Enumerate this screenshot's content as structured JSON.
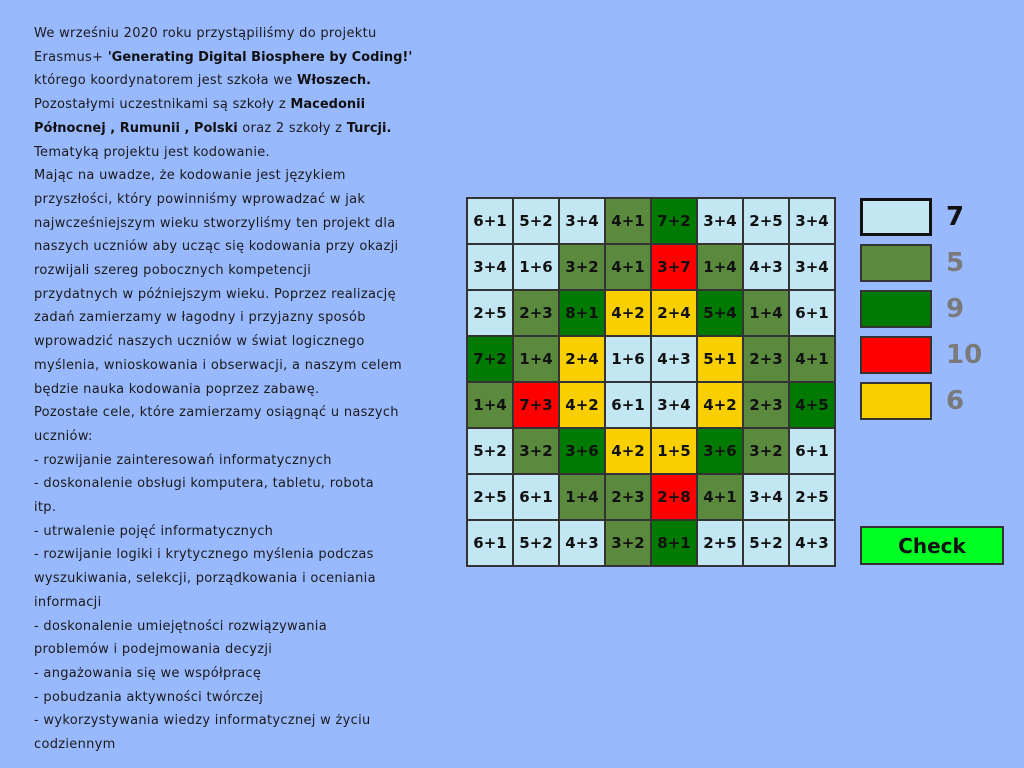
{
  "colors": {
    "light": "#c2e6f2",
    "olive": "#5b8a3e",
    "green": "#007a00",
    "red": "#ff0000",
    "yellow": "#f9cf00",
    "background": "#99b9ff",
    "check": "#00ff22"
  },
  "text_lines": [
    [
      {
        "t": "We wrześniu 2020 roku przystąpiliśmy do projektu",
        "b": false
      }
    ],
    [
      {
        "t": "Erasmus+ ",
        "b": false
      },
      {
        "t": "'Generating Digital Biosphere by Coding!'",
        "b": true
      }
    ],
    [
      {
        "t": "którego koordynatorem jest szkoła we ",
        "b": false
      },
      {
        "t": "Włoszech.",
        "b": true
      }
    ],
    [
      {
        "t": "Pozostałymi uczestnikami są szkoły z ",
        "b": false
      },
      {
        "t": "Macedonii",
        "b": true
      }
    ],
    [
      {
        "t": "Północnej ,  Rumunii ,  Polski ",
        "b": true
      },
      {
        "t": " oraz 2 szkoły z ",
        "b": false
      },
      {
        "t": "Turcji.",
        "b": true
      }
    ],
    [
      {
        "t": "Tematyką projektu jest kodowanie.",
        "b": false
      }
    ],
    [
      {
        "t": "Mając na uwadze, że kodowanie jest językiem",
        "b": false
      }
    ],
    [
      {
        "t": "przyszłości, który powinniśmy wprowadzać w jak",
        "b": false
      }
    ],
    [
      {
        "t": "najwcześniejszym wieku stworzyliśmy ten projekt dla",
        "b": false
      }
    ],
    [
      {
        "t": "naszych uczniów aby ucząc się kodowania przy okazji",
        "b": false
      }
    ],
    [
      {
        "t": "rozwijali szereg pobocznych kompetencji",
        "b": false
      }
    ],
    [
      {
        "t": "przydatnych w późniejszym wieku. Poprzez realizację",
        "b": false
      }
    ],
    [
      {
        "t": "zadań zamierzamy w łagodny i przyjazny sposób",
        "b": false
      }
    ],
    [
      {
        "t": "wprowadzić naszych uczniów w świat logicznego",
        "b": false
      }
    ],
    [
      {
        "t": "myślenia, wnioskowania i obserwacji, a naszym celem",
        "b": false
      }
    ],
    [
      {
        "t": "będzie nauka kodowania poprzez zabawę.",
        "b": false
      }
    ],
    [
      {
        "t": "Pozostałe cele, które zamierzamy osiągnąć u naszych",
        "b": false
      }
    ],
    [
      {
        "t": "uczniów:",
        "b": false
      }
    ],
    [
      {
        "t": "- rozwijanie zainteresowań informatycznych",
        "b": false
      }
    ],
    [
      {
        "t": "- doskonalenie obsługi komputera, tabletu, robota",
        "b": false
      }
    ],
    [
      {
        "t": "itp.",
        "b": false
      }
    ],
    [
      {
        "t": "- utrwalenie pojęć informatycznych",
        "b": false
      }
    ],
    [
      {
        "t": "- rozwijanie logiki i krytycznego myślenia podczas",
        "b": false
      }
    ],
    [
      {
        "t": "wyszukiwania, selekcji, porządkowania i oceniania",
        "b": false
      }
    ],
    [
      {
        "t": "informacji",
        "b": false
      }
    ],
    [
      {
        "t": "- doskonalenie umiejętności rozwiązywania",
        "b": false
      }
    ],
    [
      {
        "t": "problemów i podejmowania decyzji",
        "b": false
      }
    ],
    [
      {
        "t": "- angażowania się we współpracę",
        "b": false
      }
    ],
    [
      {
        "t": "- pobudzania aktywności twórczej",
        "b": false
      }
    ],
    [
      {
        "t": "- wykorzystywania wiedzy informatycznej w życiu",
        "b": false
      }
    ],
    [
      {
        "t": "codziennym",
        "b": false
      }
    ]
  ],
  "grid": [
    [
      [
        "6+1",
        "light"
      ],
      [
        "5+2",
        "light"
      ],
      [
        "3+4",
        "light"
      ],
      [
        "4+1",
        "olive"
      ],
      [
        "7+2",
        "green"
      ],
      [
        "3+4",
        "light"
      ],
      [
        "2+5",
        "light"
      ],
      [
        "3+4",
        "light"
      ]
    ],
    [
      [
        "3+4",
        "light"
      ],
      [
        "1+6",
        "light"
      ],
      [
        "3+2",
        "olive"
      ],
      [
        "4+1",
        "olive"
      ],
      [
        "3+7",
        "red"
      ],
      [
        "1+4",
        "olive"
      ],
      [
        "4+3",
        "light"
      ],
      [
        "3+4",
        "light"
      ]
    ],
    [
      [
        "2+5",
        "light"
      ],
      [
        "2+3",
        "olive"
      ],
      [
        "8+1",
        "green"
      ],
      [
        "4+2",
        "yellow"
      ],
      [
        "2+4",
        "yellow"
      ],
      [
        "5+4",
        "green"
      ],
      [
        "1+4",
        "olive"
      ],
      [
        "6+1",
        "light"
      ]
    ],
    [
      [
        "7+2",
        "green"
      ],
      [
        "1+4",
        "olive"
      ],
      [
        "2+4",
        "yellow"
      ],
      [
        "1+6",
        "light"
      ],
      [
        "4+3",
        "light"
      ],
      [
        "5+1",
        "yellow"
      ],
      [
        "2+3",
        "olive"
      ],
      [
        "4+1",
        "olive"
      ]
    ],
    [
      [
        "1+4",
        "olive"
      ],
      [
        "7+3",
        "red"
      ],
      [
        "4+2",
        "yellow"
      ],
      [
        "6+1",
        "light"
      ],
      [
        "3+4",
        "light"
      ],
      [
        "4+2",
        "yellow"
      ],
      [
        "2+3",
        "olive"
      ],
      [
        "4+5",
        "green"
      ]
    ],
    [
      [
        "5+2",
        "light"
      ],
      [
        "3+2",
        "olive"
      ],
      [
        "3+6",
        "green"
      ],
      [
        "4+2",
        "yellow"
      ],
      [
        "1+5",
        "yellow"
      ],
      [
        "3+6",
        "green"
      ],
      [
        "3+2",
        "olive"
      ],
      [
        "6+1",
        "light"
      ]
    ],
    [
      [
        "2+5",
        "light"
      ],
      [
        "6+1",
        "light"
      ],
      [
        "1+4",
        "olive"
      ],
      [
        "2+3",
        "olive"
      ],
      [
        "2+8",
        "red"
      ],
      [
        "4+1",
        "olive"
      ],
      [
        "3+4",
        "light"
      ],
      [
        "2+5",
        "light"
      ]
    ],
    [
      [
        "6+1",
        "light"
      ],
      [
        "5+2",
        "light"
      ],
      [
        "4+3",
        "light"
      ],
      [
        "3+2",
        "olive"
      ],
      [
        "8+1",
        "green"
      ],
      [
        "2+5",
        "light"
      ],
      [
        "5+2",
        "light"
      ],
      [
        "4+3",
        "light"
      ]
    ]
  ],
  "legend": [
    {
      "color": "light",
      "value": "7",
      "selected": true
    },
    {
      "color": "olive",
      "value": "5",
      "selected": false
    },
    {
      "color": "green",
      "value": "9",
      "selected": false
    },
    {
      "color": "red",
      "value": "10",
      "selected": false
    },
    {
      "color": "yellow",
      "value": "6",
      "selected": false
    }
  ],
  "check_label": "Check"
}
